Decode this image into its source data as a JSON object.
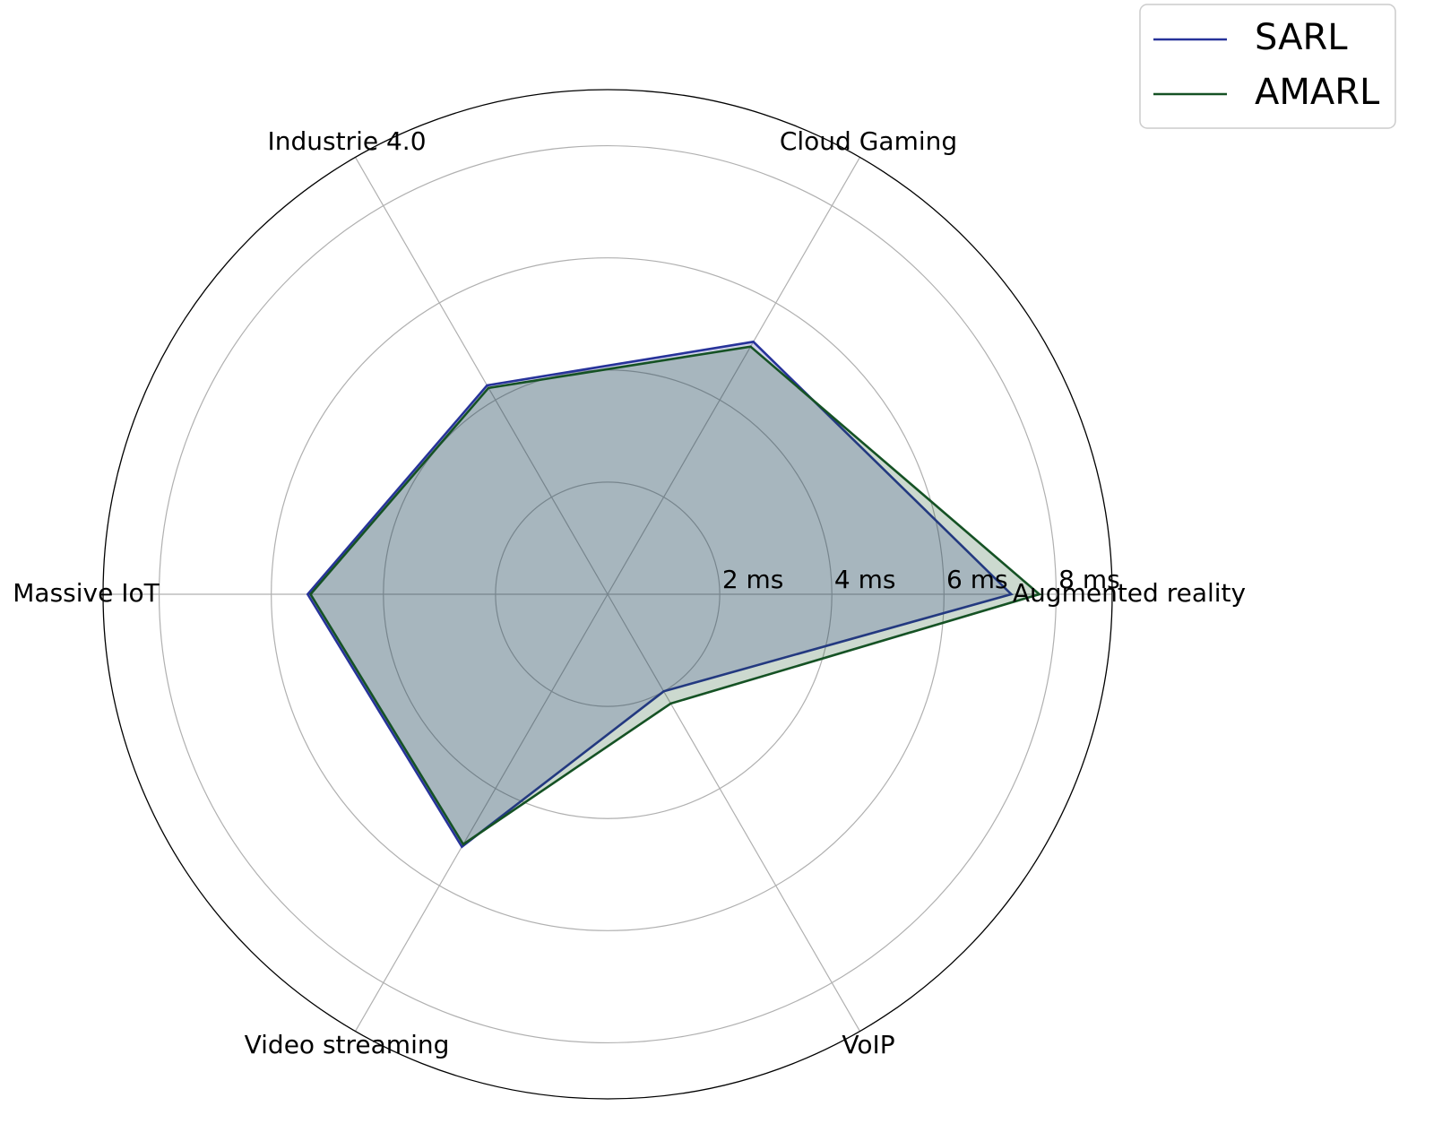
{
  "chart_data": {
    "type": "radar",
    "categories": [
      "Augmented reality",
      "Cloud Gaming",
      "Industrie 4.0",
      "Massive IoT",
      "Video streaming",
      "VoIP"
    ],
    "series": [
      {
        "name": "SARL",
        "color": "#27339a",
        "values": [
          7.2,
          5.2,
          4.3,
          5.35,
          5.2,
          2.0
        ]
      },
      {
        "name": "AMARL",
        "color": "#155224",
        "values": [
          7.7,
          5.1,
          4.25,
          5.3,
          5.15,
          2.25
        ]
      }
    ],
    "ylim": [
      0,
      9
    ],
    "yticks": [
      {
        "value": 2,
        "label": "2 ms"
      },
      {
        "value": 4,
        "label": "4 ms"
      },
      {
        "value": 6,
        "label": "6 ms"
      },
      {
        "value": 8,
        "label": "8 ms"
      }
    ],
    "grid": true,
    "legend": "upper right"
  }
}
